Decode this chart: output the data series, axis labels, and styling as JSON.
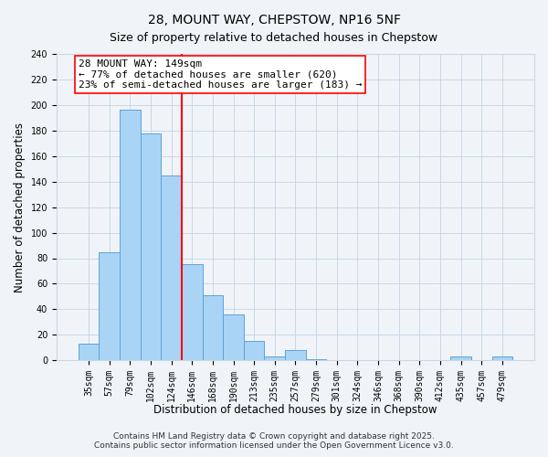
{
  "title": "28, MOUNT WAY, CHEPSTOW, NP16 5NF",
  "subtitle": "Size of property relative to detached houses in Chepstow",
  "xlabel": "Distribution of detached houses by size in Chepstow",
  "ylabel": "Number of detached properties",
  "bin_labels": [
    "35sqm",
    "57sqm",
    "79sqm",
    "102sqm",
    "124sqm",
    "146sqm",
    "168sqm",
    "190sqm",
    "213sqm",
    "235sqm",
    "257sqm",
    "279sqm",
    "301sqm",
    "324sqm",
    "346sqm",
    "368sqm",
    "390sqm",
    "412sqm",
    "435sqm",
    "457sqm",
    "479sqm"
  ],
  "bar_values": [
    13,
    85,
    196,
    178,
    145,
    75,
    51,
    36,
    15,
    3,
    8,
    1,
    0,
    0,
    0,
    0,
    0,
    0,
    3,
    0,
    3
  ],
  "bar_color": "#aad4f5",
  "bar_edge_color": "#5ba3d9",
  "vline_color": "red",
  "vline_index": 5,
  "annotation_line1": "28 MOUNT WAY: 149sqm",
  "annotation_line2": "← 77% of detached houses are smaller (620)",
  "annotation_line3": "23% of semi-detached houses are larger (183) →",
  "annotation_box_color": "white",
  "annotation_box_edge": "red",
  "ylim": [
    0,
    240
  ],
  "yticks": [
    0,
    20,
    40,
    60,
    80,
    100,
    120,
    140,
    160,
    180,
    200,
    220,
    240
  ],
  "footnote1": "Contains HM Land Registry data © Crown copyright and database right 2025.",
  "footnote2": "Contains public sector information licensed under the Open Government Licence v3.0.",
  "bg_color": "#f0f4f8",
  "grid_color": "#c8d8e8",
  "title_fontsize": 10,
  "subtitle_fontsize": 9,
  "axis_label_fontsize": 8.5,
  "tick_fontsize": 7,
  "annotation_fontsize": 8,
  "footnote_fontsize": 6.5
}
